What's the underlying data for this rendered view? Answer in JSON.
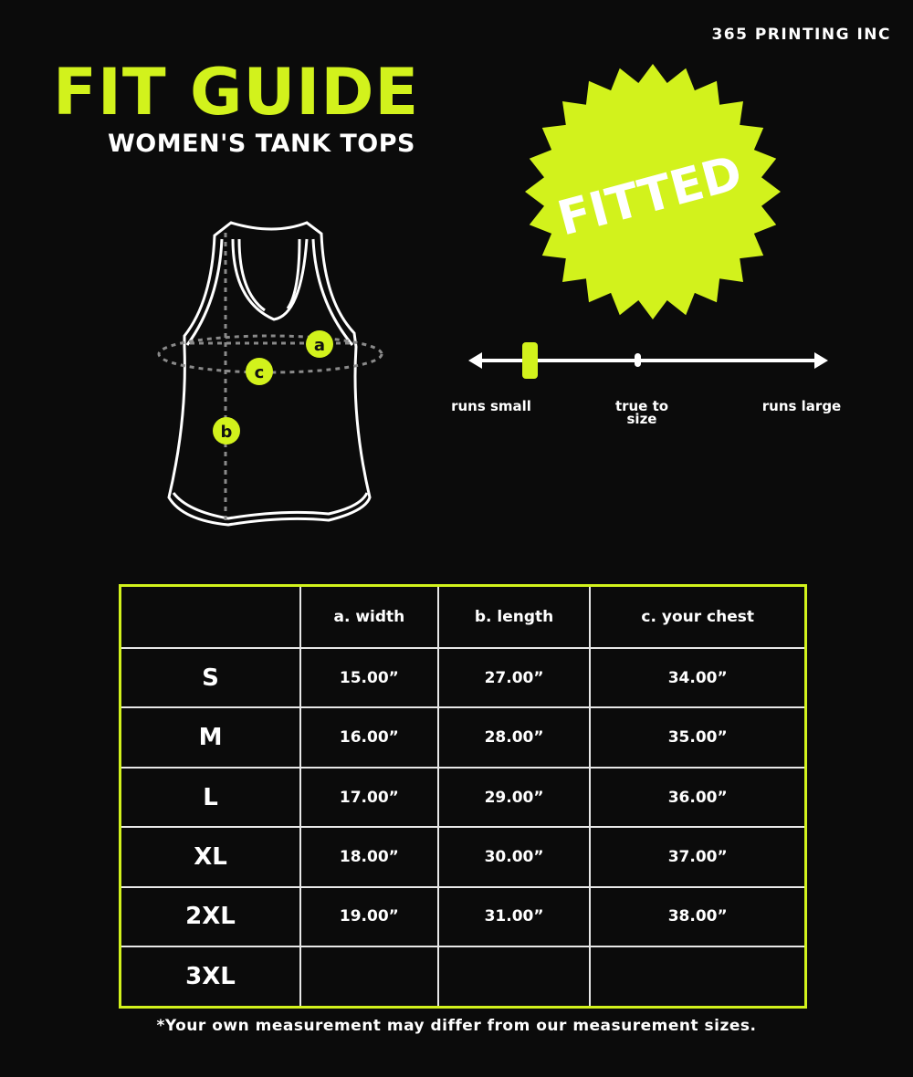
{
  "brand": "365 PRINTING INC",
  "title": "FIT GUIDE",
  "subtitle": "WOMEN'S TANK TOPS",
  "badge": {
    "label": "FITTED",
    "color": "#d2f21c"
  },
  "diagram": {
    "markers": [
      "a",
      "b",
      "c"
    ]
  },
  "fit_scale": {
    "labels": {
      "small": "runs small",
      "true": "true to size",
      "large": "runs large"
    },
    "position": 0.17
  },
  "table": {
    "headers": [
      "",
      "a. width",
      "b. length",
      "c. your chest"
    ],
    "rows": [
      [
        "S",
        "15.00”",
        "27.00”",
        "34.00”"
      ],
      [
        "M",
        "16.00”",
        "28.00”",
        "35.00”"
      ],
      [
        "L",
        "17.00”",
        "29.00”",
        "36.00”"
      ],
      [
        "XL",
        "18.00”",
        "30.00”",
        "37.00”"
      ],
      [
        "2XL",
        "19.00”",
        "31.00”",
        "38.00”"
      ],
      [
        "3XL",
        "",
        "",
        ""
      ]
    ]
  },
  "note": "*Your own measurement may differ from our measurement sizes.",
  "colors": {
    "accent": "#d2f21c",
    "background": "#0b0b0b"
  }
}
